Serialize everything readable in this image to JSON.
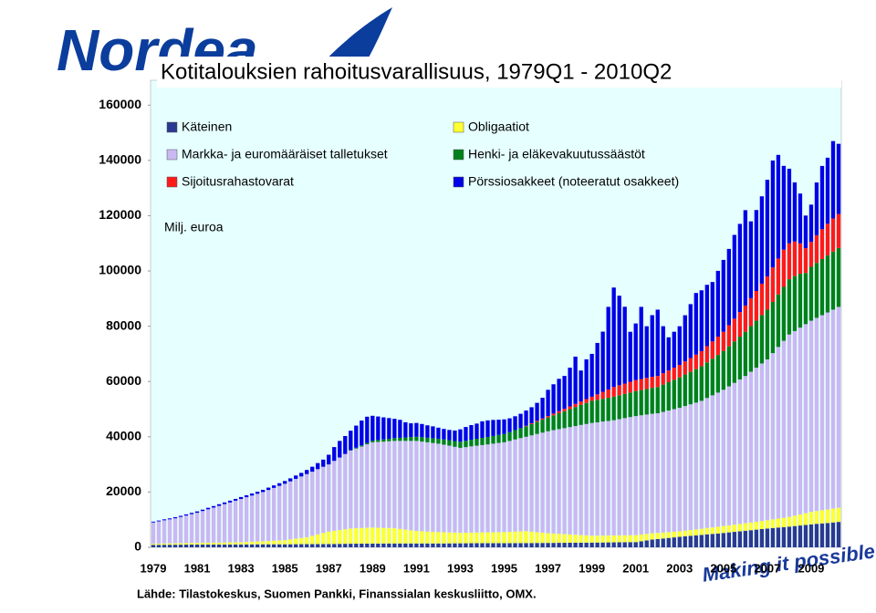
{
  "chart_data": {
    "type": "stacked_bar",
    "title": "Kotitalouksien rahoitusvarallisuus, 1979Q1 - 2010Q2",
    "y_label": "Milj. euroa",
    "source": "Lähde: Tilastokeskus, Suomen Pankki, Finanssialan keskusliitto, OMX.",
    "logo": "Nordea",
    "slogan": "Making it possible",
    "ylim": [
      0,
      169000
    ],
    "yticks": [
      0,
      20000,
      40000,
      60000,
      80000,
      100000,
      120000,
      140000,
      160000
    ],
    "grid": false,
    "categories": [
      "1979",
      null,
      null,
      null,
      null,
      null,
      null,
      null,
      "1981",
      null,
      null,
      null,
      null,
      null,
      null,
      null,
      "1983",
      null,
      null,
      null,
      null,
      null,
      null,
      null,
      "1985",
      null,
      null,
      null,
      null,
      null,
      null,
      null,
      "1987",
      null,
      null,
      null,
      null,
      null,
      null,
      null,
      "1989",
      null,
      null,
      null,
      null,
      null,
      null,
      null,
      "1991",
      null,
      null,
      null,
      null,
      null,
      null,
      null,
      "1993",
      null,
      null,
      null,
      null,
      null,
      null,
      null,
      "1995",
      null,
      null,
      null,
      null,
      null,
      null,
      null,
      "1997",
      null,
      null,
      null,
      null,
      null,
      null,
      null,
      "1999",
      null,
      null,
      null,
      null,
      null,
      null,
      null,
      "2001",
      null,
      null,
      null,
      null,
      null,
      null,
      null,
      "2003",
      null,
      null,
      null,
      null,
      null,
      null,
      null,
      "2005",
      null,
      null,
      null,
      null,
      null,
      null,
      null,
      "2007",
      null,
      null,
      null,
      null,
      null,
      null,
      null,
      "2009",
      null,
      null,
      null,
      null,
      null
    ],
    "series": [
      {
        "name": "Käteinen",
        "color": "#2b3990",
        "values": [
          900,
          910,
          930,
          940,
          950,
          960,
          980,
          990,
          1000,
          1000,
          1000,
          1000,
          1000,
          1010,
          1030,
          1040,
          1050,
          1060,
          1080,
          1090,
          1100,
          1100,
          1100,
          1100,
          1100,
          1110,
          1130,
          1140,
          1150,
          1160,
          1180,
          1190,
          1200,
          1230,
          1250,
          1280,
          1300,
          1310,
          1330,
          1340,
          1350,
          1360,
          1380,
          1390,
          1400,
          1400,
          1400,
          1400,
          1400,
          1400,
          1400,
          1400,
          1400,
          1410,
          1430,
          1440,
          1450,
          1460,
          1480,
          1490,
          1500,
          1500,
          1500,
          1500,
          1500,
          1510,
          1530,
          1540,
          1550,
          1560,
          1580,
          1590,
          1600,
          1610,
          1630,
          1640,
          1650,
          1660,
          1680,
          1690,
          1700,
          1730,
          1750,
          1780,
          1800,
          1830,
          1850,
          1880,
          1900,
          2200,
          2500,
          2800,
          3000,
          3200,
          3400,
          3600,
          3800,
          4000,
          4150,
          4300,
          4500,
          4700,
          4850,
          5000,
          5200,
          5400,
          5600,
          5800,
          6000,
          6200,
          6400,
          6600,
          6800,
          7000,
          7150,
          7300,
          7500,
          7700,
          7900,
          8100,
          8300,
          8500,
          8650,
          8800,
          9000,
          9200
        ]
      },
      {
        "name": "Markka- ja euromääräiset talletukset",
        "color": "#c9b8f2",
        "values": [
          7700,
          8050,
          8400,
          8700,
          9050,
          9500,
          9950,
          10450,
          10900,
          11500,
          12100,
          12700,
          13300,
          13900,
          14450,
          15050,
          15650,
          16200,
          16700,
          17250,
          17800,
          18450,
          19100,
          19750,
          20400,
          21000,
          21650,
          22250,
          22850,
          23200,
          23600,
          23950,
          24300,
          25300,
          26250,
          27250,
          28200,
          28850,
          29500,
          30200,
          30850,
          31050,
          31200,
          31400,
          31600,
          31850,
          32100,
          32350,
          32600,
          32450,
          32300,
          32150,
          32000,
          31700,
          31400,
          31050,
          30750,
          30950,
          31200,
          31400,
          31600,
          31800,
          32050,
          32300,
          32500,
          32900,
          33350,
          33750,
          34150,
          34850,
          35550,
          36200,
          36900,
          37400,
          37900,
          38350,
          38850,
          39350,
          39850,
          40300,
          40800,
          41000,
          41250,
          41450,
          41700,
          42050,
          42400,
          42750,
          43100,
          43150,
          43200,
          43250,
          43300,
          43650,
          44000,
          44350,
          44700,
          45100,
          45500,
          45900,
          46300,
          47050,
          47800,
          48550,
          49300,
          50300,
          51300,
          52300,
          53300,
          54550,
          55750,
          57000,
          58200,
          60150,
          62100,
          64050,
          66000,
          66800,
          67600,
          68400,
          69200,
          69900,
          70600,
          71300,
          72000,
          72700
        ]
      },
      {
        "name": "Sijoitusrahastovarat",
        "color": "#ff1a1a",
        "values": [
          0,
          0,
          0,
          0,
          0,
          0,
          0,
          0,
          0,
          0,
          0,
          0,
          0,
          0,
          0,
          0,
          0,
          0,
          0,
          0,
          0,
          0,
          0,
          0,
          0,
          0,
          0,
          0,
          0,
          0,
          0,
          0,
          0,
          0,
          0,
          0,
          0,
          0,
          0,
          0,
          0,
          0,
          0,
          0,
          0,
          0,
          0,
          0,
          0,
          0,
          0,
          0,
          0,
          0,
          0,
          0,
          0,
          0,
          0,
          0,
          0,
          0,
          0,
          0,
          0,
          0,
          0,
          0,
          200,
          280,
          350,
          430,
          500,
          630,
          750,
          880,
          1000,
          1130,
          1250,
          1380,
          1500,
          2000,
          2500,
          3000,
          3500,
          3630,
          3750,
          3880,
          4000,
          4000,
          4000,
          4000,
          4000,
          4130,
          4250,
          4380,
          4500,
          4750,
          5000,
          5250,
          5500,
          5880,
          6250,
          6630,
          7000,
          7630,
          8250,
          8880,
          9500,
          10130,
          10750,
          11380,
          12000,
          12500,
          13000,
          13500,
          13000,
          12500,
          11000,
          9000,
          9000,
          10000,
          10800,
          11500,
          12000,
          12300
        ]
      },
      {
        "name": "Obligaatiot",
        "color": "#ffff33",
        "values": [
          400,
          430,
          450,
          480,
          500,
          530,
          550,
          580,
          600,
          630,
          650,
          680,
          700,
          730,
          750,
          780,
          800,
          880,
          950,
          1030,
          1100,
          1200,
          1300,
          1400,
          1500,
          1750,
          2000,
          2250,
          2500,
          3000,
          3500,
          4000,
          4500,
          4750,
          5000,
          5250,
          5500,
          5580,
          5650,
          5730,
          5800,
          5730,
          5650,
          5580,
          5500,
          5250,
          5000,
          4750,
          4500,
          4400,
          4300,
          4200,
          4100,
          4030,
          3950,
          3880,
          3800,
          3830,
          3850,
          3880,
          3900,
          3930,
          3950,
          3980,
          4000,
          4080,
          4150,
          4230,
          4300,
          4100,
          3900,
          3700,
          3500,
          3380,
          3250,
          3130,
          3000,
          2880,
          2750,
          2630,
          2500,
          2500,
          2500,
          2500,
          2500,
          2500,
          2500,
          2500,
          2500,
          2430,
          2350,
          2280,
          2200,
          2150,
          2100,
          2050,
          2000,
          2050,
          2100,
          2150,
          2200,
          2280,
          2350,
          2430,
          2500,
          2550,
          2600,
          2650,
          2700,
          2780,
          2850,
          2930,
          3000,
          3130,
          3250,
          3380,
          3500,
          3750,
          4000,
          4250,
          4500,
          4630,
          4750,
          4880,
          5000,
          5100
        ]
      },
      {
        "name": "Henki- ja eläkevakuutussäästöt",
        "color": "#00801a",
        "values": [
          0,
          0,
          0,
          0,
          0,
          0,
          0,
          0,
          0,
          0,
          0,
          0,
          0,
          0,
          0,
          0,
          0,
          0,
          0,
          0,
          0,
          0,
          0,
          0,
          0,
          0,
          0,
          0,
          0,
          0,
          0,
          0,
          0,
          0,
          0,
          0,
          200,
          300,
          400,
          500,
          600,
          700,
          800,
          900,
          1000,
          1130,
          1250,
          1380,
          1500,
          1580,
          1650,
          1730,
          1800,
          1900,
          2000,
          2100,
          2200,
          2300,
          2400,
          2500,
          2600,
          2700,
          2800,
          2900,
          3000,
          3200,
          3400,
          3600,
          3800,
          4100,
          4400,
          4700,
          5000,
          5380,
          5750,
          6130,
          6500,
          6880,
          7250,
          7630,
          8000,
          8130,
          8250,
          8380,
          8500,
          8630,
          8750,
          8880,
          9000,
          9130,
          9250,
          9380,
          9500,
          9880,
          10250,
          10630,
          11000,
          11380,
          11750,
          12130,
          12500,
          12880,
          13250,
          13630,
          14000,
          14500,
          15000,
          15500,
          16000,
          16500,
          17000,
          17500,
          18000,
          18500,
          19000,
          19500,
          20000,
          19900,
          19500,
          18500,
          19500,
          19900,
          20300,
          20600,
          21000,
          21300
        ]
      },
      {
        "name": "Pörssiosakkeet (noteeratut osakkeet)",
        "color": "#0000e6",
        "values": [
          300,
          300,
          350,
          350,
          400,
          400,
          450,
          450,
          500,
          500,
          550,
          550,
          600,
          600,
          650,
          650,
          700,
          700,
          750,
          750,
          800,
          850,
          900,
          950,
          1000,
          1100,
          1200,
          1300,
          1500,
          1800,
          2200,
          2600,
          3500,
          5000,
          6000,
          6500,
          7000,
          8000,
          9000,
          9500,
          9000,
          8500,
          8000,
          7500,
          7000,
          6500,
          5500,
          5000,
          5000,
          4800,
          4500,
          4300,
          4000,
          3800,
          3700,
          3800,
          4500,
          5000,
          5300,
          5500,
          6000,
          6000,
          5800,
          5500,
          5300,
          5000,
          5000,
          5200,
          5500,
          5800,
          6500,
          7500,
          9500,
          10600,
          11700,
          11900,
          14000,
          17100,
          11200,
          14400,
          15500,
          18600,
          21800,
          29900,
          36000,
          32400,
          27800,
          18100,
          20500,
          26100,
          18700,
          22300,
          24000,
          17000,
          12000,
          13000,
          14000,
          16700,
          19500,
          22300,
          22000,
          22200,
          21500,
          23800,
          26000,
          27600,
          30300,
          31900,
          34500,
          27800,
          29300,
          31600,
          35000,
          38700,
          37500,
          30300,
          27000,
          21400,
          18000,
          11800,
          13500,
          19100,
          22900,
          23900,
          28000,
          25400
        ]
      }
    ]
  }
}
